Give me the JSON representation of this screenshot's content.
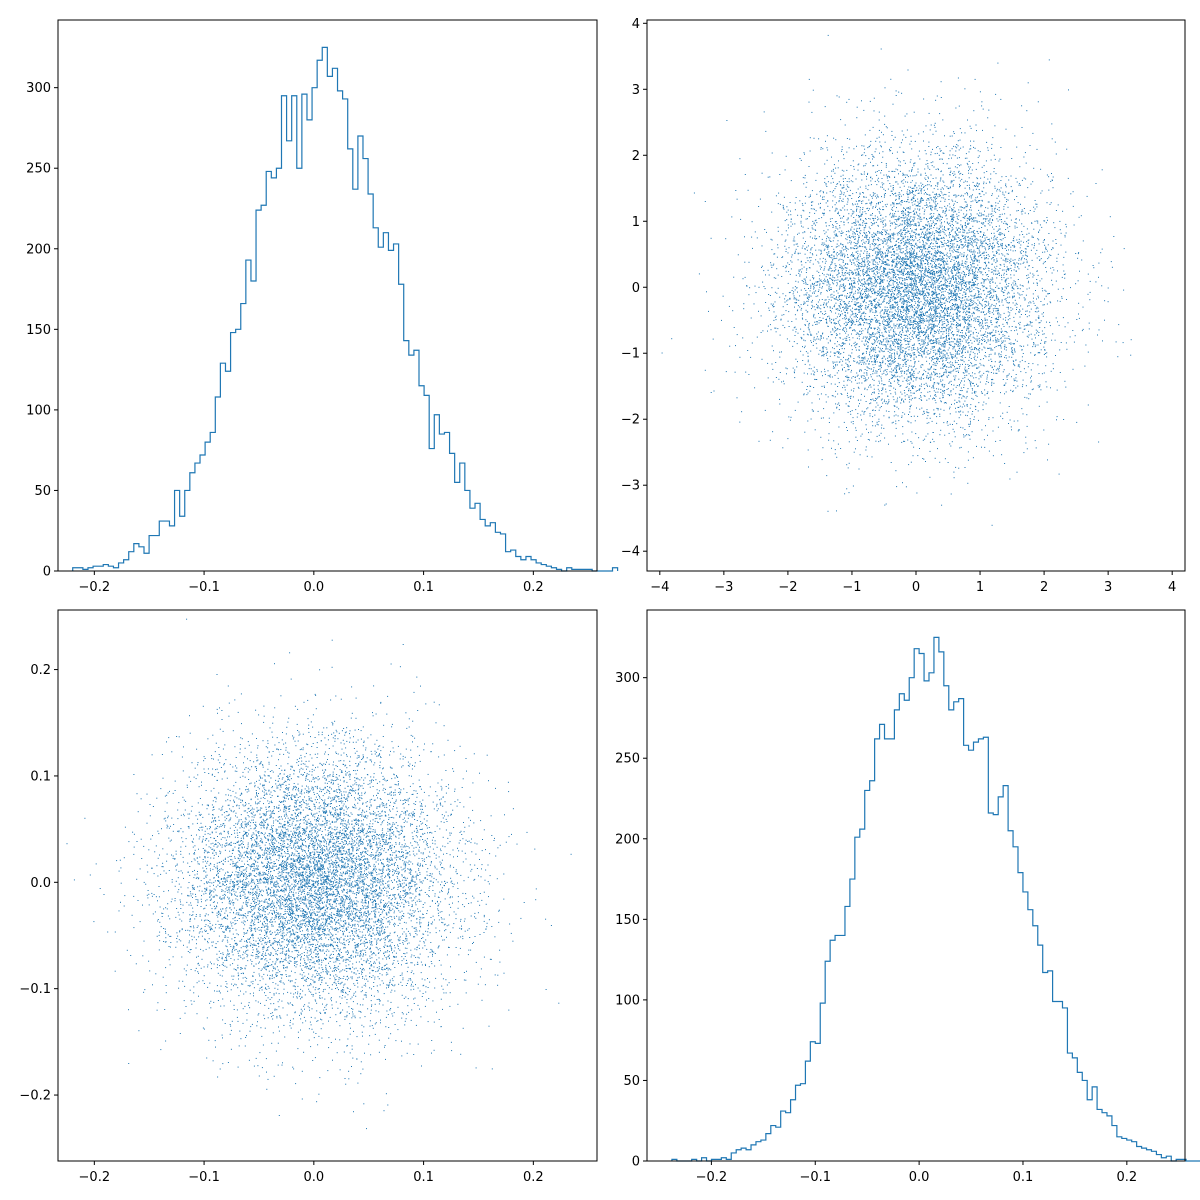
{
  "chart_data": [
    {
      "type": "histogram",
      "histtype": "step",
      "color": "#1f77b4",
      "xlim": [
        -0.2331,
        0.258
      ],
      "ylim": [
        0,
        342
      ],
      "xticks": [
        -0.2,
        -0.1,
        0.0,
        0.1,
        0.2
      ],
      "xtick_labels": [
        "−0.2",
        "−0.1",
        "0.0",
        "0.1",
        "0.2"
      ],
      "yticks": [
        0,
        50,
        100,
        150,
        200,
        250,
        300
      ],
      "ytick_labels": [
        "0",
        "50",
        "100",
        "150",
        "200",
        "250",
        "300"
      ],
      "bin_start": -0.2197,
      "bin_width": 0.00464,
      "counts": [
        2,
        2,
        1,
        2,
        3,
        3,
        4,
        3,
        2,
        5,
        7,
        12,
        17,
        15,
        11,
        22,
        22,
        31,
        31,
        28,
        50,
        34,
        50,
        61,
        67,
        72,
        80,
        86,
        108,
        129,
        124,
        148,
        150,
        166,
        193,
        180,
        224,
        227,
        248,
        244,
        250,
        295,
        267,
        295,
        250,
        296,
        280,
        300,
        317,
        325,
        307,
        312,
        298,
        293,
        262,
        237,
        270,
        256,
        234,
        213,
        201,
        210,
        199,
        203,
        178,
        143,
        134,
        137,
        115,
        109,
        76,
        97,
        85,
        86,
        73,
        55,
        67,
        50,
        39,
        42,
        32,
        28,
        30,
        24,
        23,
        12,
        13,
        9,
        7,
        9,
        7,
        5,
        4,
        3,
        2,
        1,
        0,
        2,
        1,
        1,
        1,
        1,
        0,
        0,
        0,
        0,
        2
      ]
    },
    {
      "type": "scatter",
      "marker": "pixel",
      "color": "#1f77b4",
      "xlim": [
        -4.2,
        4.2
      ],
      "ylim": [
        -4.3,
        4.05
      ],
      "xticks": [
        -4,
        -3,
        -2,
        -1,
        0,
        1,
        2,
        3,
        4
      ],
      "xtick_labels": [
        "−4",
        "−3",
        "−2",
        "−1",
        "0",
        "1",
        "2",
        "3",
        "4"
      ],
      "yticks": [
        -4,
        -3,
        -2,
        -1,
        0,
        1,
        2,
        3,
        4
      ],
      "ytick_labels": [
        "−4",
        "−3",
        "−2",
        "−1",
        "0",
        "1",
        "2",
        "3",
        "4"
      ],
      "distribution": "bivariate normal",
      "mean": [
        0,
        0
      ],
      "std": [
        1.0,
        1.0
      ],
      "n_points": 10000,
      "seed": 11
    },
    {
      "type": "scatter",
      "marker": "pixel",
      "color": "#1f77b4",
      "xlim": [
        -0.2331,
        0.258
      ],
      "ylim": [
        -0.262,
        0.256
      ],
      "xticks": [
        -0.2,
        -0.1,
        0.0,
        0.1,
        0.2
      ],
      "xtick_labels": [
        "−0.2",
        "−0.1",
        "0.0",
        "0.1",
        "0.2"
      ],
      "yticks": [
        -0.2,
        -0.1,
        0.0,
        0.1,
        0.2
      ],
      "ytick_labels": [
        "−0.2",
        "−0.1",
        "0.0",
        "0.1",
        "0.2"
      ],
      "distribution": "bivariate normal",
      "mean": [
        0,
        0
      ],
      "std": [
        0.062,
        0.062
      ],
      "n_points": 10000,
      "seed": 23
    },
    {
      "type": "histogram",
      "histtype": "step",
      "color": "#1f77b4",
      "xlim": [
        -0.262,
        0.256
      ],
      "ylim": [
        0,
        342
      ],
      "xticks": [
        -0.2,
        -0.1,
        0.0,
        0.1,
        0.2
      ],
      "xtick_labels": [
        "−0.2",
        "−0.1",
        "0.0",
        "0.1",
        "0.2"
      ],
      "yticks": [
        0,
        50,
        100,
        150,
        200,
        250,
        300
      ],
      "ytick_labels": [
        "0",
        "50",
        "100",
        "150",
        "200",
        "250",
        "300"
      ],
      "bin_start": -0.238,
      "bin_width": 0.00476,
      "counts": [
        1,
        0,
        0,
        0,
        1,
        0,
        2,
        0,
        1,
        1,
        2,
        1,
        5,
        7,
        8,
        7,
        10,
        12,
        13,
        17,
        22,
        21,
        31,
        30,
        38,
        47,
        48,
        62,
        74,
        73,
        98,
        124,
        137,
        140,
        140,
        158,
        175,
        201,
        206,
        230,
        236,
        262,
        271,
        262,
        262,
        280,
        290,
        286,
        300,
        318,
        315,
        298,
        303,
        325,
        316,
        295,
        280,
        285,
        287,
        258,
        255,
        260,
        262,
        263,
        216,
        215,
        226,
        233,
        205,
        195,
        179,
        167,
        156,
        146,
        134,
        117,
        118,
        99,
        99,
        95,
        67,
        64,
        55,
        50,
        38,
        46,
        32,
        30,
        28,
        22,
        15,
        14,
        13,
        12,
        9,
        8,
        7,
        6,
        4,
        2,
        3,
        0,
        1,
        1,
        0,
        0,
        0,
        0,
        0,
        0,
        0
      ]
    }
  ]
}
